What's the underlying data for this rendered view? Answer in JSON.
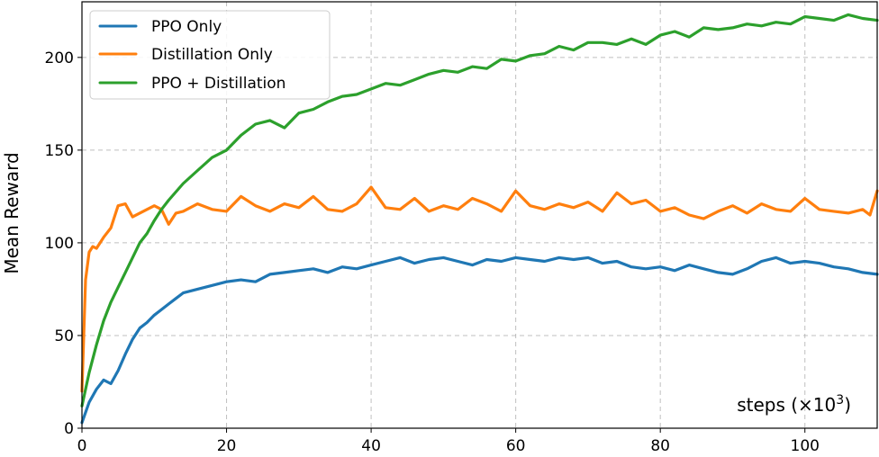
{
  "chart_data": {
    "type": "line",
    "ylabel": "Mean Reward",
    "annotation": {
      "text": "steps (×10",
      "sup": "3",
      "close": ")"
    },
    "xlim": [
      0,
      110
    ],
    "ylim": [
      0,
      230
    ],
    "xticks": [
      0,
      20,
      40,
      60,
      80,
      100
    ],
    "yticks": [
      0,
      50,
      100,
      150,
      200
    ],
    "grid": true,
    "legend_position": "top-left",
    "series": [
      {
        "name": "PPO Only",
        "color": "#1f77b4",
        "x": [
          0,
          1,
          2,
          3,
          4,
          5,
          6,
          7,
          8,
          9,
          10,
          11,
          12,
          13,
          14,
          16,
          18,
          20,
          22,
          24,
          26,
          28,
          30,
          32,
          34,
          36,
          38,
          40,
          42,
          44,
          46,
          48,
          50,
          52,
          54,
          56,
          58,
          60,
          62,
          64,
          66,
          68,
          70,
          72,
          74,
          76,
          78,
          80,
          82,
          84,
          86,
          88,
          90,
          92,
          94,
          96,
          98,
          100,
          102,
          104,
          106,
          108,
          110
        ],
        "y": [
          3,
          14,
          21,
          26,
          24,
          31,
          40,
          48,
          54,
          57,
          61,
          64,
          67,
          70,
          73,
          75,
          77,
          79,
          80,
          79,
          83,
          84,
          85,
          86,
          84,
          87,
          86,
          88,
          90,
          92,
          89,
          91,
          92,
          90,
          88,
          91,
          90,
          92,
          91,
          90,
          92,
          91,
          92,
          89,
          90,
          87,
          86,
          87,
          85,
          88,
          86,
          84,
          83,
          86,
          90,
          92,
          89,
          90,
          89,
          87,
          86,
          84,
          83
        ]
      },
      {
        "name": "Distillation Only",
        "color": "#ff7f0e",
        "x": [
          0,
          0.5,
          1,
          1.5,
          2,
          3,
          4,
          5,
          6,
          7,
          8,
          9,
          10,
          11,
          12,
          13,
          14,
          16,
          18,
          20,
          22,
          24,
          26,
          28,
          30,
          32,
          34,
          36,
          38,
          40,
          42,
          44,
          46,
          48,
          50,
          52,
          54,
          56,
          58,
          60,
          62,
          64,
          66,
          68,
          70,
          72,
          74,
          76,
          78,
          80,
          82,
          84,
          86,
          88,
          90,
          92,
          94,
          96,
          98,
          100,
          102,
          104,
          106,
          108,
          109,
          110
        ],
        "y": [
          20,
          80,
          95,
          98,
          97,
          103,
          108,
          120,
          121,
          114,
          116,
          118,
          120,
          118,
          110,
          116,
          117,
          121,
          118,
          117,
          125,
          120,
          117,
          121,
          119,
          125,
          118,
          117,
          121,
          130,
          119,
          118,
          124,
          117,
          120,
          118,
          124,
          121,
          117,
          128,
          120,
          118,
          121,
          119,
          122,
          117,
          127,
          121,
          123,
          117,
          119,
          115,
          113,
          117,
          120,
          116,
          121,
          118,
          117,
          124,
          118,
          117,
          116,
          118,
          115,
          128
        ]
      },
      {
        "name": "PPO + Distillation",
        "color": "#2ca02c",
        "x": [
          0,
          1,
          2,
          3,
          4,
          5,
          6,
          7,
          8,
          9,
          10,
          11,
          12,
          14,
          16,
          18,
          20,
          22,
          24,
          26,
          28,
          30,
          32,
          34,
          36,
          38,
          40,
          42,
          44,
          46,
          48,
          50,
          52,
          54,
          56,
          58,
          60,
          62,
          64,
          66,
          68,
          70,
          72,
          74,
          76,
          78,
          80,
          82,
          84,
          86,
          88,
          90,
          92,
          94,
          96,
          98,
          100,
          102,
          104,
          106,
          108,
          110
        ],
        "y": [
          12,
          30,
          45,
          58,
          68,
          76,
          84,
          92,
          100,
          105,
          112,
          118,
          123,
          132,
          139,
          146,
          150,
          158,
          164,
          166,
          162,
          170,
          172,
          176,
          179,
          180,
          183,
          186,
          185,
          188,
          191,
          193,
          192,
          195,
          194,
          199,
          198,
          201,
          202,
          206,
          204,
          208,
          208,
          207,
          210,
          207,
          212,
          214,
          211,
          216,
          215,
          216,
          218,
          217,
          219,
          218,
          222,
          221,
          220,
          223,
          221,
          220
        ]
      }
    ]
  }
}
